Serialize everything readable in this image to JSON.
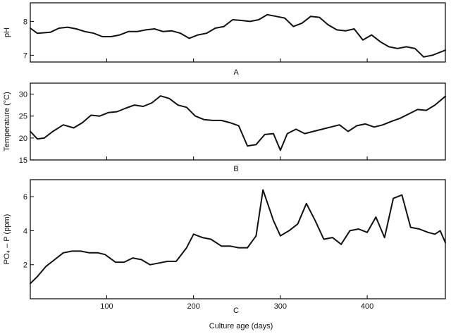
{
  "chart_data": [
    {
      "type": "line",
      "panel_label": "A",
      "xlabel": "",
      "ylabel": "pH",
      "xlim": [
        12,
        490
      ],
      "ylim": [
        6.8,
        8.55
      ],
      "xticks": [
        100,
        200,
        300,
        400
      ],
      "xtick_labels": [],
      "yticks": [
        7,
        8
      ],
      "ytick_labels": [
        "7",
        "8"
      ],
      "grid": false,
      "x": [
        12,
        20,
        35,
        45,
        55,
        65,
        75,
        85,
        95,
        105,
        115,
        125,
        135,
        145,
        155,
        165,
        175,
        185,
        195,
        205,
        215,
        225,
        235,
        245,
        255,
        265,
        275,
        285,
        295,
        305,
        315,
        325,
        335,
        345,
        355,
        365,
        375,
        385,
        395,
        405,
        415,
        425,
        435,
        445,
        455,
        465,
        475,
        480,
        490
      ],
      "y": [
        7.8,
        7.65,
        7.68,
        7.8,
        7.83,
        7.78,
        7.7,
        7.65,
        7.55,
        7.55,
        7.6,
        7.7,
        7.7,
        7.75,
        7.78,
        7.7,
        7.72,
        7.65,
        7.5,
        7.6,
        7.65,
        7.8,
        7.85,
        8.05,
        8.03,
        8.0,
        8.05,
        8.2,
        8.15,
        8.1,
        7.85,
        7.95,
        8.15,
        8.12,
        7.9,
        7.75,
        7.72,
        7.78,
        7.45,
        7.6,
        7.4,
        7.25,
        7.2,
        7.25,
        7.2,
        6.95,
        7.0,
        7.05,
        7.15
      ]
    },
    {
      "type": "line",
      "panel_label": "B",
      "xlabel": "",
      "ylabel": "Temperature (°C)",
      "xlim": [
        12,
        490
      ],
      "ylim": [
        15,
        32.5
      ],
      "xticks": [
        100,
        200,
        300,
        400
      ],
      "xtick_labels": [],
      "yticks": [
        15,
        20,
        25,
        30
      ],
      "ytick_labels": [
        "15",
        "20",
        "25",
        "30"
      ],
      "grid": false,
      "x": [
        12,
        20,
        28,
        38,
        50,
        62,
        72,
        82,
        92,
        102,
        112,
        122,
        132,
        142,
        152,
        162,
        172,
        182,
        192,
        202,
        212,
        222,
        232,
        242,
        252,
        262,
        272,
        282,
        292,
        300,
        308,
        318,
        328,
        338,
        348,
        358,
        368,
        378,
        388,
        398,
        408,
        418,
        428,
        438,
        448,
        458,
        468,
        478,
        490
      ],
      "y": [
        21.5,
        19.8,
        20.0,
        21.5,
        23.0,
        22.3,
        23.5,
        25.2,
        25.0,
        25.8,
        26.0,
        26.8,
        27.5,
        27.2,
        28.0,
        29.6,
        29.0,
        27.5,
        27.0,
        25.0,
        24.2,
        24.0,
        24.0,
        23.5,
        22.8,
        18.2,
        18.5,
        20.8,
        21.0,
        17.2,
        21.0,
        22.0,
        21.0,
        21.5,
        22.0,
        22.5,
        23.0,
        21.5,
        22.8,
        23.2,
        22.5,
        23.0,
        23.8,
        24.5,
        25.5,
        26.5,
        26.3,
        27.5,
        29.5
      ]
    },
    {
      "type": "line",
      "panel_label": "C",
      "xlabel": "Culture age (days)",
      "ylabel": "PO₄ – P (ppm)",
      "xlim": [
        12,
        490
      ],
      "ylim": [
        0,
        7
      ],
      "xticks": [
        100,
        200,
        300,
        400
      ],
      "xtick_labels": [
        "100",
        "200",
        "300",
        "400"
      ],
      "yticks": [
        2,
        4,
        6
      ],
      "ytick_labels": [
        "2",
        "4",
        "6"
      ],
      "grid": false,
      "x": [
        12,
        20,
        30,
        40,
        50,
        60,
        70,
        80,
        90,
        98,
        110,
        120,
        130,
        140,
        150,
        160,
        170,
        180,
        192,
        200,
        210,
        220,
        232,
        242,
        252,
        262,
        272,
        280,
        292,
        300,
        310,
        320,
        330,
        340,
        350,
        360,
        370,
        380,
        390,
        400,
        410,
        420,
        430,
        440,
        450,
        460,
        470,
        478,
        484,
        490
      ],
      "y": [
        0.9,
        1.3,
        1.9,
        2.3,
        2.7,
        2.8,
        2.8,
        2.7,
        2.7,
        2.6,
        2.15,
        2.15,
        2.4,
        2.3,
        2.0,
        2.1,
        2.2,
        2.2,
        3.0,
        3.8,
        3.6,
        3.5,
        3.1,
        3.1,
        3.0,
        3.0,
        3.7,
        6.4,
        4.6,
        3.7,
        4.0,
        4.4,
        5.6,
        4.6,
        3.5,
        3.6,
        3.2,
        4.0,
        4.1,
        3.9,
        4.8,
        3.6,
        5.9,
        6.1,
        4.2,
        4.1,
        3.9,
        3.8,
        4.0,
        3.3
      ]
    }
  ]
}
